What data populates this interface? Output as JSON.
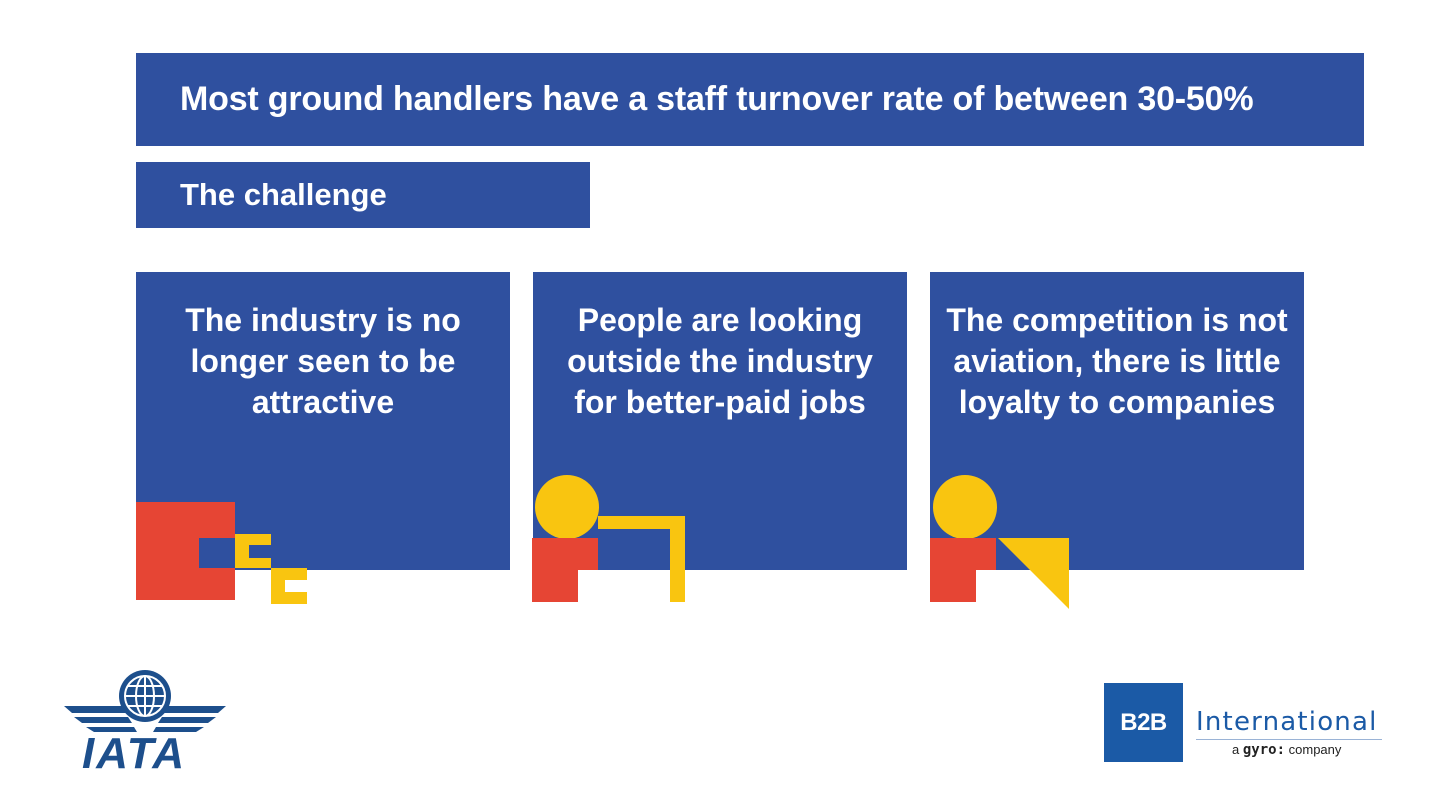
{
  "headline": "Most ground handlers have a staff turnover rate of between 30-50%",
  "subheading": "The challenge",
  "cards": [
    {
      "text": "The industry is no longer seen to be attractive",
      "icon": "blocks-icon"
    },
    {
      "text": "People are looking outside the industry for better-paid jobs",
      "icon": "person-at-desk-icon"
    },
    {
      "text": "The competition is not aviation, there is little loyalty to companies",
      "icon": "person-triangle-icon"
    }
  ],
  "logos": {
    "iata": {
      "text": "IATA",
      "icon": "globe-wings-icon"
    },
    "b2b": {
      "box": "B2B",
      "name": "International",
      "tag_pre": "a",
      "tag_brand": "gyro:",
      "tag_post": "company"
    }
  },
  "colors": {
    "panel": "#2f509f",
    "red": "#e64534",
    "yellow": "#f9c510",
    "iata_blue": "#1d4f8c",
    "b2b_blue": "#1b5aa6"
  }
}
